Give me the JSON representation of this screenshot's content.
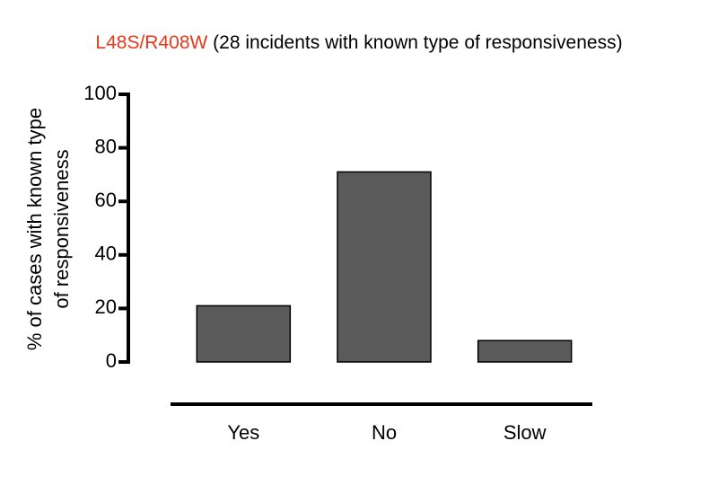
{
  "chart_data": {
    "type": "bar",
    "title": [
      "L48S/R408W",
      "(28 incidents with known type of responsiveness)"
    ],
    "title_colors": [
      "#e8381a",
      "#000000"
    ],
    "ylabel": [
      "% of cases with  known type",
      "of responsiveness"
    ],
    "categories": [
      "Yes",
      "No",
      "Slow"
    ],
    "values": [
      21,
      71,
      8
    ],
    "color": "#5a5a5a",
    "ylim": [
      0,
      100
    ],
    "yticks": [
      0,
      20,
      40,
      60,
      80,
      100
    ],
    "grid": false
  }
}
